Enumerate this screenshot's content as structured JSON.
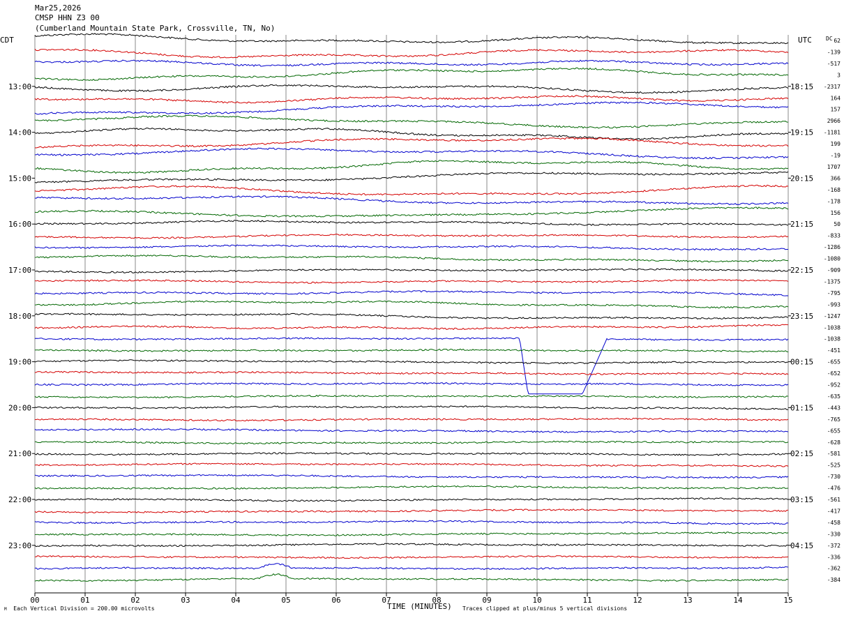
{
  "header": {
    "date": "Mar25,2026",
    "station": "CMSP HHN Z3 00",
    "location": "(Cumberland Mountain State Park, Crossville, TN, No)"
  },
  "left_tz": "CDT",
  "right_tz": "UTC",
  "dc_label": "DC",
  "footer": {
    "scale_note": "Each Vertical Division = 200.00 microvolts",
    "x_title": "TIME (MINUTES)",
    "clip_note": "Traces clipped at plus/minus 5 vertical divisions",
    "corner_mark": "M"
  },
  "chart_data": {
    "type": "line",
    "title": "",
    "xlabel": "TIME (MINUTES)",
    "xlim": [
      0,
      15
    ],
    "x_ticks": [
      "00",
      "01",
      "02",
      "03",
      "04",
      "05",
      "06",
      "07",
      "08",
      "09",
      "10",
      "11",
      "12",
      "13",
      "14",
      "15"
    ],
    "row_interval_minutes": 15,
    "row_count": 48,
    "series_colors": [
      "#000000",
      "#d40000",
      "#0000cc",
      "#006600"
    ],
    "left_hour_labels": [
      "13:00",
      "14:00",
      "15:00",
      "16:00",
      "17:00",
      "18:00",
      "19:00",
      "20:00",
      "21:00",
      "22:00",
      "23:00"
    ],
    "right_hour_labels": [
      "18:15",
      "19:15",
      "20:15",
      "21:15",
      "22:15",
      "23:15",
      "00:15",
      "01:15",
      "02:15",
      "03:15",
      "04:15"
    ],
    "dc_offsets": [
      "62",
      "-139",
      "-517",
      "3",
      "-2317",
      "164",
      "157",
      "2966",
      "-1181",
      "199",
      "-19",
      "1707",
      "366",
      "-168",
      "-178",
      "156",
      "50",
      "-833",
      "-1286",
      "-1080",
      "-909",
      "-1375",
      "-795",
      "-993",
      "-1247",
      "-1038",
      "-1038",
      "-451",
      "-655",
      "-652",
      "-952",
      "-635",
      "-443",
      "-765",
      "-655",
      "-628",
      "-581",
      "-525",
      "-730",
      "-476",
      "-561",
      "-417",
      "-458",
      "-330",
      "-372",
      "-336",
      "-362",
      "-384"
    ]
  }
}
